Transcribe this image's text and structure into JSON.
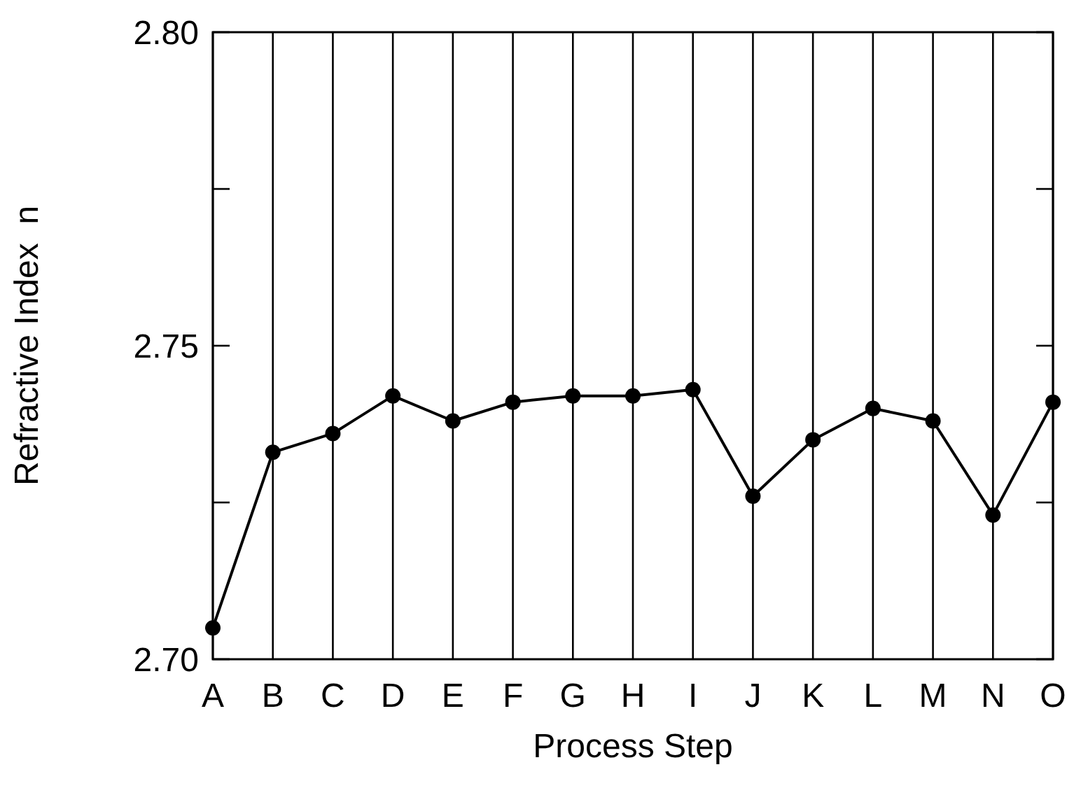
{
  "chart_data": {
    "type": "line",
    "xlabel": "Process Step",
    "ylabel": "Refractive Index  n",
    "categories": [
      "A",
      "B",
      "C",
      "D",
      "E",
      "F",
      "G",
      "H",
      "I",
      "J",
      "K",
      "L",
      "M",
      "N",
      "O"
    ],
    "series": [
      {
        "color": "#000000",
        "values": [
          2.705,
          2.733,
          2.736,
          2.742,
          2.738,
          2.741,
          2.742,
          2.742,
          2.743,
          2.726,
          2.735,
          2.74,
          2.738,
          2.723,
          2.741
        ]
      }
    ],
    "ylim": [
      2.7,
      2.8
    ],
    "yticks": [
      {
        "value": 2.7,
        "label": "2.70"
      },
      {
        "value": 2.725,
        "label": null
      },
      {
        "value": 2.75,
        "label": "2.75"
      },
      {
        "value": 2.775,
        "label": null
      },
      {
        "value": 2.8,
        "label": "2.80"
      }
    ],
    "grid": "x",
    "marker": "circle",
    "line_style": "solid"
  }
}
